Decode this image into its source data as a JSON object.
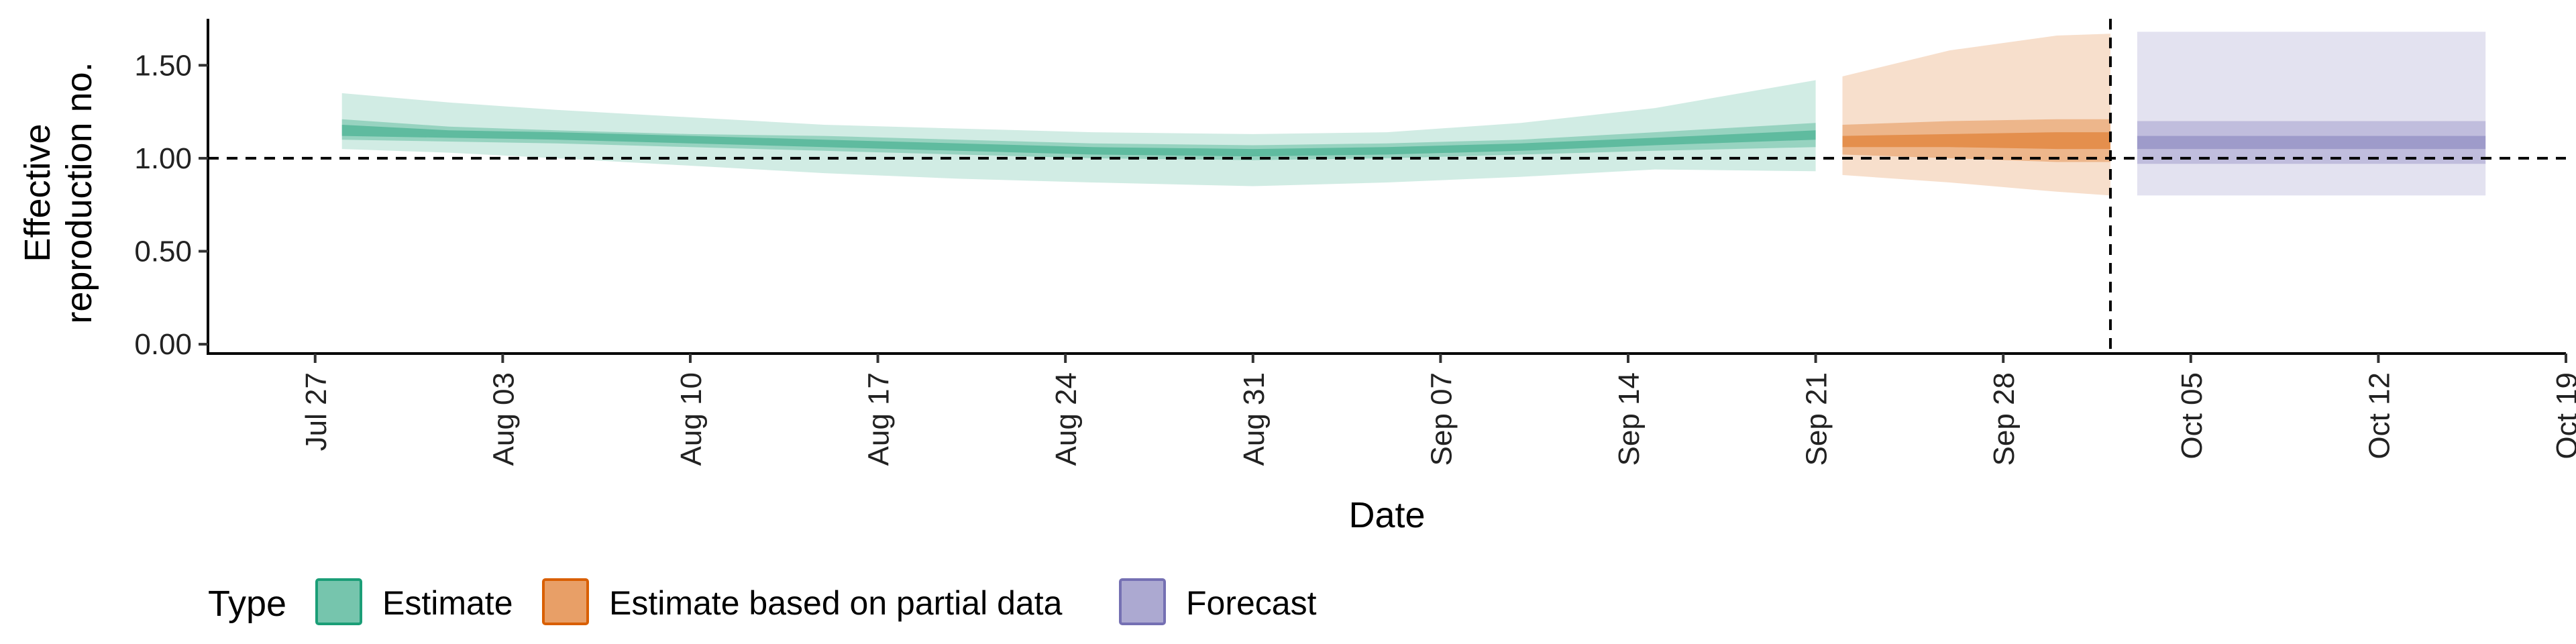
{
  "chart_data": {
    "type": "area",
    "xlabel": "Date",
    "ylabel": [
      "Effective",
      "reproduction no."
    ],
    "ylim": [
      -0.05,
      1.75
    ],
    "xlim": [
      "2020-07-23",
      "2020-10-19"
    ],
    "yticks": [
      0.0,
      0.5,
      1.0,
      1.5
    ],
    "ytick_labels": [
      "0.00",
      "0.50",
      "1.00",
      "1.50"
    ],
    "xticks": [
      "2020-07-27",
      "2020-08-03",
      "2020-08-10",
      "2020-08-17",
      "2020-08-24",
      "2020-08-31",
      "2020-09-07",
      "2020-09-14",
      "2020-09-21",
      "2020-09-28",
      "2020-10-05",
      "2020-10-12",
      "2020-10-19"
    ],
    "xtick_labels": [
      "Jul 27",
      "Aug 03",
      "Aug 10",
      "Aug 17",
      "Aug 24",
      "Aug 31",
      "Sep 07",
      "Sep 14",
      "Sep 21",
      "Sep 28",
      "Oct 05",
      "Oct 12",
      "Oct 19"
    ],
    "hline": 1.0,
    "vline": "2020-10-02",
    "grid": false,
    "legend": {
      "title": "Type",
      "position": "bottom",
      "entries": [
        {
          "label": "Estimate",
          "color": "#1b9e77"
        },
        {
          "label": "Estimate based on partial data",
          "color": "#d95f02"
        },
        {
          "label": "Forecast",
          "color": "#7570b3"
        }
      ]
    },
    "series": [
      {
        "name": "Estimate",
        "color": "#1b9e77",
        "points": [
          {
            "x": "2020-07-28",
            "median": 1.15,
            "lo20": 1.12,
            "hi20": 1.18,
            "lo50": 1.1,
            "hi50": 1.21,
            "lo90": 1.05,
            "hi90": 1.35
          },
          {
            "x": "2020-08-01",
            "median": 1.13,
            "lo20": 1.11,
            "hi20": 1.15,
            "lo50": 1.09,
            "hi50": 1.17,
            "lo90": 1.03,
            "hi90": 1.3
          },
          {
            "x": "2020-08-05",
            "median": 1.12,
            "lo20": 1.1,
            "hi20": 1.14,
            "lo50": 1.08,
            "hi50": 1.15,
            "lo90": 1.0,
            "hi90": 1.26
          },
          {
            "x": "2020-08-10",
            "median": 1.1,
            "lo20": 1.08,
            "hi20": 1.12,
            "lo50": 1.06,
            "hi50": 1.13,
            "lo90": 0.96,
            "hi90": 1.22
          },
          {
            "x": "2020-08-15",
            "median": 1.08,
            "lo20": 1.06,
            "hi20": 1.1,
            "lo50": 1.04,
            "hi50": 1.12,
            "lo90": 0.92,
            "hi90": 1.18
          },
          {
            "x": "2020-08-20",
            "median": 1.06,
            "lo20": 1.04,
            "hi20": 1.08,
            "lo50": 1.02,
            "hi50": 1.1,
            "lo90": 0.89,
            "hi90": 1.16
          },
          {
            "x": "2020-08-25",
            "median": 1.04,
            "lo20": 1.02,
            "hi20": 1.06,
            "lo50": 1.0,
            "hi50": 1.08,
            "lo90": 0.87,
            "hi90": 1.14
          },
          {
            "x": "2020-08-31",
            "median": 1.03,
            "lo20": 1.01,
            "hi20": 1.05,
            "lo50": 0.99,
            "hi50": 1.07,
            "lo90": 0.85,
            "hi90": 1.13
          },
          {
            "x": "2020-09-05",
            "median": 1.04,
            "lo20": 1.02,
            "hi20": 1.06,
            "lo50": 1.0,
            "hi50": 1.08,
            "lo90": 0.87,
            "hi90": 1.14
          },
          {
            "x": "2020-09-10",
            "median": 1.06,
            "lo20": 1.04,
            "hi20": 1.08,
            "lo50": 1.02,
            "hi50": 1.1,
            "lo90": 0.9,
            "hi90": 1.19
          },
          {
            "x": "2020-09-15",
            "median": 1.09,
            "lo20": 1.07,
            "hi20": 1.11,
            "lo50": 1.04,
            "hi50": 1.14,
            "lo90": 0.94,
            "hi90": 1.27
          },
          {
            "x": "2020-09-21",
            "median": 1.12,
            "lo20": 1.1,
            "hi20": 1.15,
            "lo50": 1.06,
            "hi50": 1.19,
            "lo90": 0.93,
            "hi90": 1.42
          }
        ]
      },
      {
        "name": "Estimate based on partial data",
        "color": "#d95f02",
        "points": [
          {
            "x": "2020-09-22",
            "median": 1.1,
            "lo20": 1.06,
            "hi20": 1.12,
            "lo50": 1.02,
            "hi50": 1.18,
            "lo90": 0.91,
            "hi90": 1.44
          },
          {
            "x": "2020-09-26",
            "median": 1.1,
            "lo20": 1.06,
            "hi20": 1.13,
            "lo50": 1.0,
            "hi50": 1.2,
            "lo90": 0.87,
            "hi90": 1.58
          },
          {
            "x": "2020-09-30",
            "median": 1.1,
            "lo20": 1.05,
            "hi20": 1.14,
            "lo50": 0.98,
            "hi50": 1.21,
            "lo90": 0.82,
            "hi90": 1.66
          },
          {
            "x": "2020-10-02",
            "median": 1.1,
            "lo20": 1.05,
            "hi20": 1.14,
            "lo50": 0.98,
            "hi50": 1.21,
            "lo90": 0.8,
            "hi90": 1.67
          }
        ]
      },
      {
        "name": "Forecast",
        "color": "#7570b3",
        "points": [
          {
            "x": "2020-10-03",
            "median": 1.08,
            "lo20": 1.05,
            "hi20": 1.12,
            "lo50": 0.97,
            "hi50": 1.2,
            "lo90": 0.8,
            "hi90": 1.68
          },
          {
            "x": "2020-10-16",
            "median": 1.08,
            "lo20": 1.05,
            "hi20": 1.12,
            "lo50": 0.97,
            "hi50": 1.2,
            "lo90": 0.8,
            "hi90": 1.68
          }
        ]
      }
    ]
  }
}
